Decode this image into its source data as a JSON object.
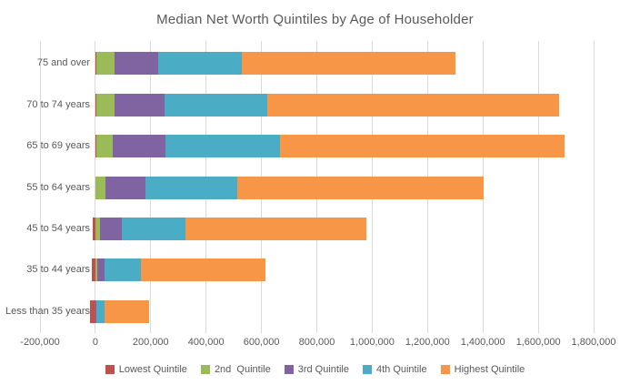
{
  "chart_data": {
    "type": "bar",
    "orientation": "horizontal",
    "stacked": true,
    "title": "Median Net Worth Quintiles by Age of Householder",
    "categories": [
      "75 and over",
      "70 to 74 years",
      "65 to 69 years",
      "55 to 64 years",
      "45 to 54 years",
      "35 to 44 years",
      "Less than 35 years"
    ],
    "series": [
      {
        "name": "Lowest Quintile",
        "color": "#C0504D",
        "values": [
          2000,
          2000,
          2000,
          1000,
          -9000,
          -14000,
          -20000
        ]
      },
      {
        "name": "2nd  Quintile",
        "color": "#9BBB59",
        "values": [
          66000,
          66000,
          60000,
          36000,
          16000,
          6000,
          1000
        ]
      },
      {
        "name": "3rd Quintile",
        "color": "#8064A2",
        "values": [
          158000,
          181000,
          190000,
          145000,
          79000,
          27000,
          3000
        ]
      },
      {
        "name": "4th Quintile",
        "color": "#4BACC6",
        "values": [
          302000,
          371000,
          414000,
          332000,
          230000,
          133000,
          30000
        ]
      },
      {
        "name": "Highest Quintile",
        "color": "#F79646",
        "values": [
          772000,
          1054000,
          1028000,
          890000,
          654000,
          447000,
          161000
        ]
      }
    ],
    "xlim": [
      -200000,
      1800000
    ],
    "x_ticks": [
      -200000,
      0,
      200000,
      400000,
      600000,
      800000,
      1000000,
      1200000,
      1400000,
      1600000,
      1800000
    ],
    "x_tick_labels": [
      "-200,000",
      "0",
      "200,000",
      "400,000",
      "600,000",
      "800,000",
      "1,000,000",
      "1,200,000",
      "1,400,000",
      "1,600,000",
      "1,800,000"
    ],
    "grid": "vertical",
    "legend_position": "bottom",
    "colors": {
      "gridline": "#d9d9d9",
      "text": "#595959",
      "title": "#595959",
      "background": "#ffffff"
    }
  }
}
